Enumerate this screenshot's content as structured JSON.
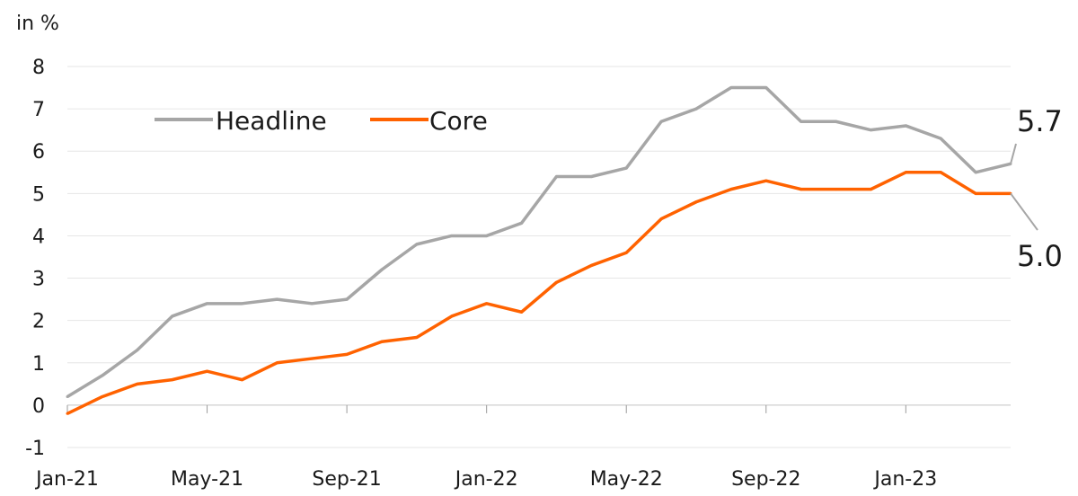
{
  "chart_data": {
    "type": "line",
    "ylabel": "in %",
    "ylim": [
      -1,
      8
    ],
    "y_ticks": [
      "8",
      "7",
      "6",
      "5",
      "4",
      "3",
      "2",
      "1",
      "0",
      "-1"
    ],
    "x_ticks": [
      "Jan-21",
      "May-21",
      "Sep-21",
      "Jan-22",
      "May-22",
      "Sep-22",
      "Jan-23"
    ],
    "x": [
      "Jan-21",
      "Feb-21",
      "Mar-21",
      "Apr-21",
      "May-21",
      "Jun-21",
      "Jul-21",
      "Aug-21",
      "Sep-21",
      "Oct-21",
      "Nov-21",
      "Dec-21",
      "Jan-22",
      "Feb-22",
      "Mar-22",
      "Apr-22",
      "May-22",
      "Jun-22",
      "Jul-22",
      "Aug-22",
      "Sep-22",
      "Oct-22",
      "Nov-22",
      "Dec-22",
      "Jan-23",
      "Feb-23",
      "Mar-23",
      "Apr-23"
    ],
    "series": [
      {
        "name": "Headline",
        "color": "#a6a6a6",
        "values": [
          0.2,
          0.7,
          1.3,
          2.1,
          2.4,
          2.4,
          2.5,
          2.4,
          2.5,
          3.2,
          3.8,
          4.0,
          4.0,
          4.3,
          5.4,
          5.4,
          5.6,
          6.7,
          7.0,
          7.5,
          7.5,
          6.7,
          6.7,
          6.5,
          6.6,
          6.3,
          5.5,
          5.7
        ]
      },
      {
        "name": "Core",
        "color": "#ff6200",
        "values": [
          -0.2,
          0.2,
          0.5,
          0.6,
          0.8,
          0.6,
          1.0,
          1.1,
          1.2,
          1.5,
          1.6,
          2.1,
          2.4,
          2.2,
          2.9,
          3.3,
          3.6,
          4.4,
          4.8,
          5.1,
          5.3,
          5.1,
          5.1,
          5.1,
          5.5,
          5.5,
          5.0,
          5.0
        ]
      }
    ],
    "annotations": [
      "5.7",
      "5.0"
    ],
    "legend": "top-left",
    "grid": true
  }
}
